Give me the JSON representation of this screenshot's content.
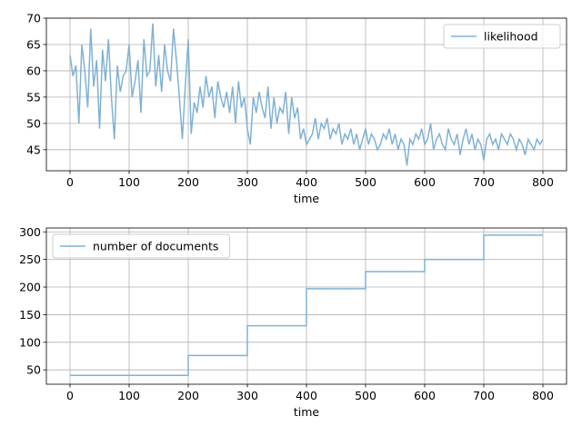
{
  "chart_data": [
    {
      "type": "line",
      "xlabel": "time",
      "ylabel": "",
      "xlim": [
        -40,
        840
      ],
      "ylim": [
        41,
        70
      ],
      "xticks": [
        0,
        100,
        200,
        300,
        400,
        500,
        600,
        700,
        800
      ],
      "yticks": [
        45,
        50,
        55,
        60,
        65,
        70
      ],
      "grid": true,
      "legend_position": "top-right",
      "series": [
        {
          "name": "likelihood",
          "color": "#7fb2d5",
          "x": [
            0,
            5,
            10,
            15,
            20,
            25,
            30,
            35,
            40,
            45,
            50,
            55,
            60,
            65,
            70,
            75,
            80,
            85,
            90,
            95,
            100,
            105,
            110,
            115,
            120,
            125,
            130,
            135,
            140,
            145,
            150,
            155,
            160,
            165,
            170,
            175,
            180,
            185,
            190,
            195,
            200,
            205,
            210,
            215,
            220,
            225,
            230,
            235,
            240,
            245,
            250,
            255,
            260,
            265,
            270,
            275,
            280,
            285,
            290,
            295,
            300,
            305,
            310,
            315,
            320,
            325,
            330,
            335,
            340,
            345,
            350,
            355,
            360,
            365,
            370,
            375,
            380,
            385,
            390,
            395,
            400,
            405,
            410,
            415,
            420,
            425,
            430,
            435,
            440,
            445,
            450,
            455,
            460,
            465,
            470,
            475,
            480,
            485,
            490,
            495,
            500,
            505,
            510,
            515,
            520,
            525,
            530,
            535,
            540,
            545,
            550,
            555,
            560,
            565,
            570,
            575,
            580,
            585,
            590,
            595,
            600,
            605,
            610,
            615,
            620,
            625,
            630,
            635,
            640,
            645,
            650,
            655,
            660,
            665,
            670,
            675,
            680,
            685,
            690,
            695,
            700,
            705,
            710,
            715,
            720,
            725,
            730,
            735,
            740,
            745,
            750,
            755,
            760,
            765,
            770,
            775,
            780,
            785,
            790,
            795,
            800
          ],
          "y": [
            63,
            59,
            61,
            50,
            65,
            60,
            53,
            68,
            57,
            62,
            49,
            64,
            58,
            66,
            55,
            47,
            61,
            56,
            59,
            60,
            65,
            55,
            58,
            62,
            52,
            66,
            59,
            60,
            69,
            57,
            63,
            56,
            65,
            60,
            58,
            68,
            62,
            55,
            47,
            57,
            66,
            48,
            54,
            52,
            57,
            53,
            59,
            55,
            57,
            51,
            58,
            55,
            53,
            56,
            52,
            57,
            50,
            58,
            53,
            55,
            49,
            46,
            55,
            52,
            56,
            53,
            51,
            57,
            49,
            55,
            50,
            53,
            52,
            56,
            48,
            55,
            51,
            53,
            47,
            49,
            46,
            47,
            48,
            51,
            47,
            50,
            49,
            51,
            47,
            49,
            48,
            50,
            46,
            48,
            47,
            49,
            46,
            48,
            45,
            47,
            49,
            46,
            48,
            47,
            45,
            46,
            48,
            47,
            49,
            46,
            48,
            45,
            47,
            46,
            42,
            47,
            46,
            48,
            47,
            49,
            46,
            47,
            50,
            45,
            47,
            48,
            46,
            45,
            49,
            47,
            46,
            48,
            44,
            47,
            49,
            46,
            48,
            45,
            47,
            46,
            43,
            47,
            48,
            46,
            47,
            45,
            48,
            47,
            46,
            48,
            47,
            45,
            47,
            46,
            44,
            47,
            46,
            45,
            47,
            46,
            47
          ]
        }
      ]
    },
    {
      "type": "line",
      "xlabel": "time",
      "ylabel": "",
      "xlim": [
        -40,
        840
      ],
      "ylim": [
        24,
        307
      ],
      "xticks": [
        0,
        100,
        200,
        300,
        400,
        500,
        600,
        700,
        800
      ],
      "yticks": [
        50,
        100,
        150,
        200,
        250,
        300
      ],
      "grid": true,
      "legend_position": "top-left",
      "series": [
        {
          "name": "number of documents",
          "color": "#7fb2d5",
          "step": "post",
          "x": [
            0,
            200,
            300,
            400,
            500,
            600,
            700,
            800
          ],
          "y": [
            40,
            76,
            130,
            197,
            228,
            250,
            294,
            294
          ]
        }
      ]
    }
  ]
}
